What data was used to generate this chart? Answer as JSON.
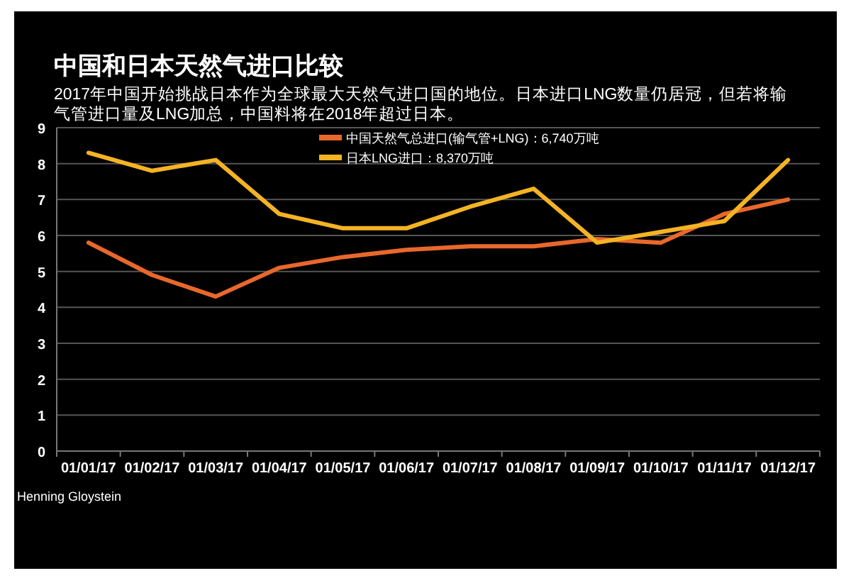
{
  "chart_data": {
    "type": "line",
    "title": "中国和日本天然气进口比较",
    "subtitle": "2017年中国开始挑战日本作为全球最大天然气进口国的地位。日本进口LNG数量仍居冠，但若将输气管进口量及LNG加总，中国料将在2018年超过日本。",
    "categories": [
      "01/01/17",
      "01/02/17",
      "01/03/17",
      "01/04/17",
      "01/05/17",
      "01/06/17",
      "01/07/17",
      "01/08/17",
      "01/09/17",
      "01/10/17",
      "01/11/17",
      "01/12/17"
    ],
    "series": [
      {
        "name": "中国天然气总进口(输气管+LNG)：6,740万吨",
        "color": "#e8682c",
        "values": [
          5.8,
          4.9,
          4.3,
          5.1,
          5.4,
          5.6,
          5.7,
          5.7,
          5.9,
          5.8,
          6.6,
          7.0
        ]
      },
      {
        "name": "日本LNG进口：8,370万吨",
        "color": "#f5b324",
        "values": [
          8.3,
          7.8,
          8.1,
          6.6,
          6.2,
          6.2,
          6.8,
          7.3,
          5.8,
          6.1,
          6.4,
          8.1
        ]
      }
    ],
    "ylim": [
      0,
      9
    ],
    "yticks": [
      0,
      1,
      2,
      3,
      4,
      5,
      6,
      7,
      8,
      9
    ],
    "grid": "y",
    "legend": "top right",
    "line_style": "solid",
    "annotations": [
      "Henning Gloystein"
    ]
  }
}
